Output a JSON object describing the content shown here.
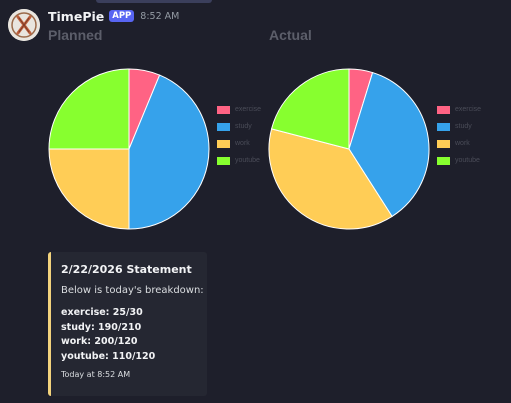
{
  "message": {
    "username": "TimePie",
    "badge": "APP",
    "timestamp": "8:52 AM"
  },
  "chart_data": [
    {
      "type": "pie",
      "title": "Planned",
      "categories": [
        "exercise",
        "study",
        "work",
        "youtube"
      ],
      "values": [
        30,
        210,
        120,
        120
      ],
      "colors": [
        "#ff6384",
        "#36a2eb",
        "#ffcd56",
        "#87ff2f"
      ],
      "legend_position": "right"
    },
    {
      "type": "pie",
      "title": "Actual",
      "categories": [
        "exercise",
        "study",
        "work",
        "youtube"
      ],
      "values": [
        25,
        190,
        200,
        110
      ],
      "colors": [
        "#ff6384",
        "#36a2eb",
        "#ffcd56",
        "#87ff2f"
      ],
      "legend_position": "right"
    }
  ],
  "embed": {
    "title": "2/22/2026 Statement",
    "description": "Below is today's breakdown:",
    "lines": [
      "exercise: 25/30",
      "study: 190/210",
      "work: 200/120",
      "youtube: 110/120"
    ],
    "footer": "Today at 8:52 AM",
    "accent_color": "#f3d37d"
  }
}
